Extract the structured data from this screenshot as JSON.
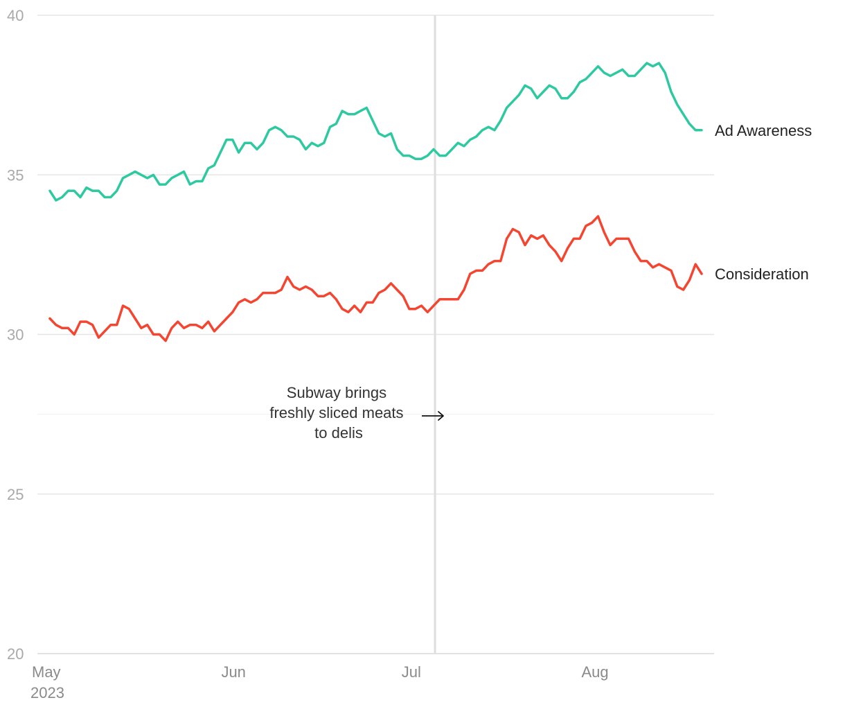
{
  "chart_data": {
    "type": "line",
    "title": "",
    "xlabel": "",
    "ylabel": "",
    "ylim": [
      20,
      40
    ],
    "yticks": [
      20,
      25,
      30,
      35,
      40
    ],
    "grid": true,
    "xticks": [
      {
        "date": "2023-05-01",
        "label": "May",
        "sublabel": "2023"
      },
      {
        "date": "2023-06-01",
        "label": "Jun",
        "sublabel": ""
      },
      {
        "date": "2023-07-01",
        "label": "Jul",
        "sublabel": ""
      },
      {
        "date": "2023-08-01",
        "label": "Aug",
        "sublabel": ""
      }
    ],
    "x_start": "2023-05-01",
    "x_end": "2023-08-19",
    "annotation": {
      "date": "2023-07-05",
      "lines": [
        "Subway brings",
        "freshly sliced meats",
        "to delis"
      ],
      "y": 27.5
    },
    "series": [
      {
        "name": "Ad Awareness",
        "color": "#2ec9a0",
        "values": [
          34.5,
          34.2,
          34.3,
          34.5,
          34.5,
          34.3,
          34.6,
          34.5,
          34.5,
          34.3,
          34.3,
          34.5,
          34.9,
          35.0,
          35.1,
          35.0,
          34.9,
          35.0,
          34.7,
          34.7,
          34.9,
          35.0,
          35.1,
          34.7,
          34.8,
          34.8,
          35.2,
          35.3,
          35.7,
          36.1,
          36.1,
          35.7,
          36.0,
          36.0,
          35.8,
          36.0,
          36.4,
          36.5,
          36.4,
          36.2,
          36.2,
          36.1,
          35.8,
          36.0,
          35.9,
          36.0,
          36.5,
          36.6,
          37.0,
          36.9,
          36.9,
          37.0,
          37.1,
          36.7,
          36.3,
          36.2,
          36.3,
          35.8,
          35.6,
          35.6,
          35.5,
          35.5,
          35.6,
          35.8,
          35.6,
          35.6,
          35.8,
          36.0,
          35.9,
          36.1,
          36.2,
          36.4,
          36.5,
          36.4,
          36.7,
          37.1,
          37.3,
          37.5,
          37.8,
          37.7,
          37.4,
          37.6,
          37.8,
          37.7,
          37.4,
          37.4,
          37.6,
          37.9,
          38.0,
          38.2,
          38.4,
          38.2,
          38.1,
          38.2,
          38.3,
          38.1,
          38.1,
          38.3,
          38.5,
          38.4,
          38.5,
          38.2,
          37.6,
          37.2,
          36.9,
          36.6,
          36.4,
          36.4
        ]
      },
      {
        "name": "Consideration",
        "color": "#f44531",
        "values": [
          30.5,
          30.3,
          30.2,
          30.2,
          30.0,
          30.4,
          30.4,
          30.3,
          29.9,
          30.1,
          30.3,
          30.3,
          30.9,
          30.8,
          30.5,
          30.2,
          30.3,
          30.0,
          30.0,
          29.8,
          30.2,
          30.4,
          30.2,
          30.3,
          30.3,
          30.2,
          30.4,
          30.1,
          30.3,
          30.5,
          30.7,
          31.0,
          31.1,
          31.0,
          31.1,
          31.3,
          31.3,
          31.3,
          31.4,
          31.8,
          31.5,
          31.4,
          31.5,
          31.4,
          31.2,
          31.2,
          31.3,
          31.1,
          30.8,
          30.7,
          30.9,
          30.7,
          31.0,
          31.0,
          31.3,
          31.4,
          31.6,
          31.4,
          31.2,
          30.8,
          30.8,
          30.9,
          30.7,
          30.9,
          31.1,
          31.1,
          31.1,
          31.1,
          31.4,
          31.9,
          32.0,
          32.0,
          32.2,
          32.3,
          32.3,
          33.0,
          33.3,
          33.2,
          32.8,
          33.1,
          33.0,
          33.1,
          32.8,
          32.6,
          32.3,
          32.7,
          33.0,
          33.0,
          33.4,
          33.5,
          33.7,
          33.2,
          32.8,
          33.0,
          33.0,
          33.0,
          32.6,
          32.3,
          32.3,
          32.1,
          32.2,
          32.1,
          32.0,
          31.5,
          31.4,
          31.7,
          32.2,
          31.9
        ]
      }
    ]
  }
}
